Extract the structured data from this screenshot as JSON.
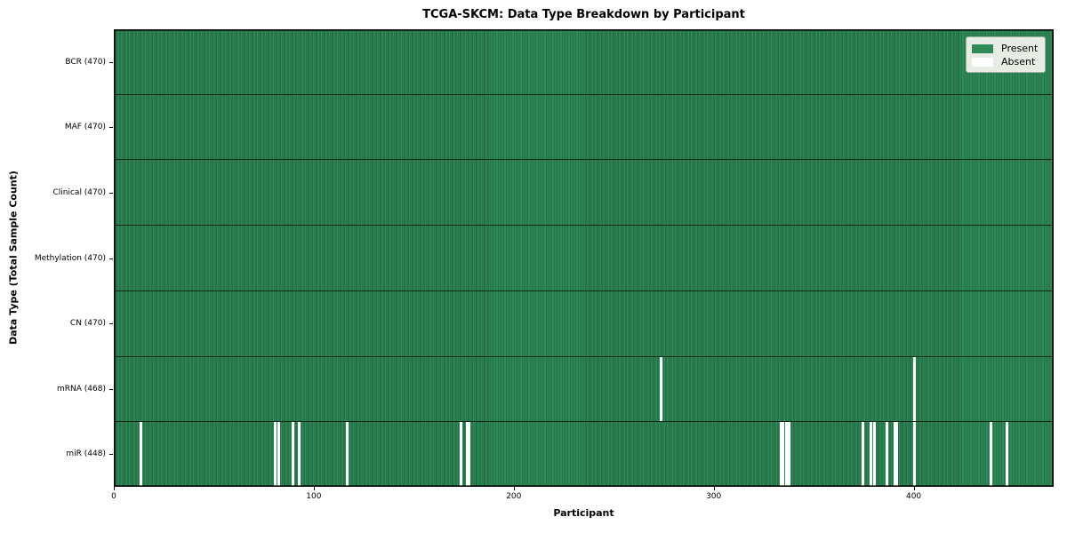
{
  "chart_data": {
    "type": "heatmap",
    "title": "TCGA-SKCM: Data Type Breakdown by Participant",
    "xlabel": "Participant",
    "ylabel": "Data Type (Total Sample Count)",
    "x_ticks": [
      0,
      100,
      200,
      300,
      400
    ],
    "x_range": [
      0,
      470
    ],
    "n_participants": 470,
    "grid": false,
    "legend_position": "upper right",
    "legend": [
      {
        "label": "Present",
        "color": "#2e8b57"
      },
      {
        "label": "Absent",
        "color": "#ffffff"
      }
    ],
    "rows": [
      {
        "label": "BCR (470)",
        "present_count": 470,
        "absent_participants": []
      },
      {
        "label": "MAF (470)",
        "present_count": 470,
        "absent_participants": []
      },
      {
        "label": "Clinical (470)",
        "present_count": 470,
        "absent_participants": []
      },
      {
        "label": "Methylation (470)",
        "present_count": 470,
        "absent_participants": []
      },
      {
        "label": "CN (470)",
        "present_count": 470,
        "absent_participants": []
      },
      {
        "label": "mRNA (468)",
        "present_count": 468,
        "absent_participants": [
          273,
          400
        ]
      },
      {
        "label": "miR (448)",
        "present_count": 448,
        "absent_participants": [
          13,
          80,
          82,
          89,
          92,
          116,
          173,
          176,
          177,
          333,
          334,
          336,
          337,
          374,
          378,
          380,
          386,
          390,
          391,
          400,
          438,
          446
        ]
      }
    ],
    "colors": {
      "present": "#2e8b57",
      "absent": "#ffffff",
      "cell_edge": "#1d5c39",
      "row_divider": "#0f2c1a",
      "plot_border": "#000000"
    }
  }
}
